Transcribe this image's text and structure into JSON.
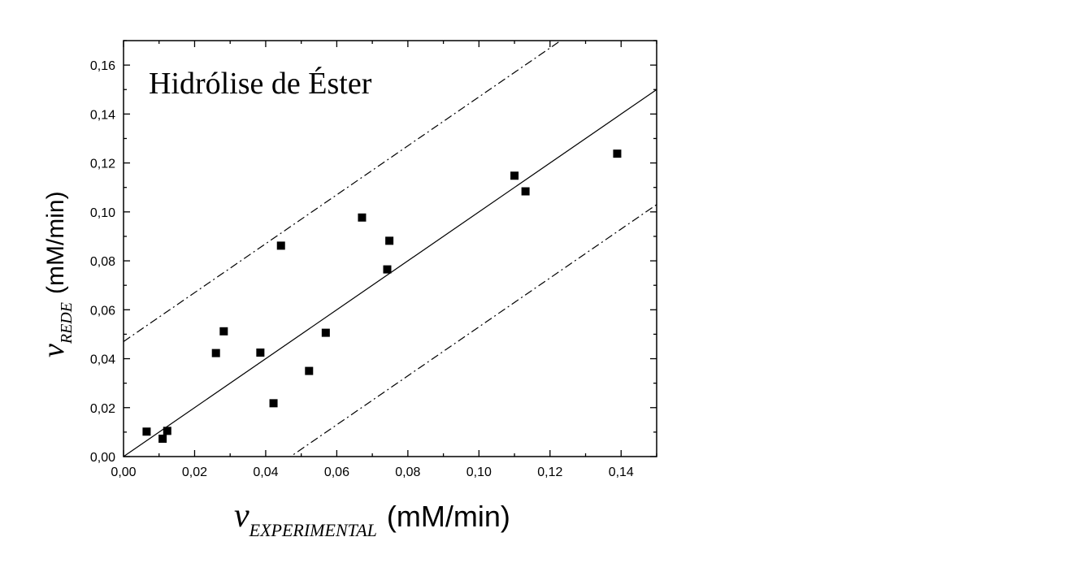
{
  "chart_data": {
    "type": "scatter",
    "title": "Hidrólise de Éster",
    "xlabel": {
      "symbol": "v",
      "subscript": "EXPERIMENTAL",
      "unit": "(mM/min)"
    },
    "ylabel": {
      "symbol": "v",
      "subscript": "REDE",
      "unit": "(mM/min)"
    },
    "xlim": [
      0,
      0.15
    ],
    "ylim": [
      0,
      0.17
    ],
    "x_ticks": [
      "0,00",
      "0,02",
      "0,04",
      "0,06",
      "0,08",
      "0,10",
      "0,12",
      "0,14"
    ],
    "y_ticks": [
      "0,00",
      "0,02",
      "0,04",
      "0,06",
      "0,08",
      "0,10",
      "0,12",
      "0,14",
      "0,16"
    ],
    "grid": false,
    "points": [
      {
        "x": 0.0065,
        "y": 0.0102
      },
      {
        "x": 0.011,
        "y": 0.0073
      },
      {
        "x": 0.0123,
        "y": 0.0105
      },
      {
        "x": 0.026,
        "y": 0.0423
      },
      {
        "x": 0.0282,
        "y": 0.0512
      },
      {
        "x": 0.0385,
        "y": 0.0425
      },
      {
        "x": 0.0422,
        "y": 0.0218
      },
      {
        "x": 0.0443,
        "y": 0.0862
      },
      {
        "x": 0.0522,
        "y": 0.035
      },
      {
        "x": 0.0569,
        "y": 0.0506
      },
      {
        "x": 0.0671,
        "y": 0.0977
      },
      {
        "x": 0.0742,
        "y": 0.0765
      },
      {
        "x": 0.0748,
        "y": 0.0882
      },
      {
        "x": 0.11,
        "y": 0.1148
      },
      {
        "x": 0.1131,
        "y": 0.1084
      },
      {
        "x": 0.1389,
        "y": 0.1238
      }
    ],
    "reference_lines": [
      {
        "style": "solid",
        "slope": 1,
        "intercept": 0
      },
      {
        "style": "dash-dot",
        "slope": 1,
        "intercept": 0.047
      },
      {
        "style": "dash-dot",
        "slope": 1,
        "intercept": -0.047
      }
    ]
  }
}
